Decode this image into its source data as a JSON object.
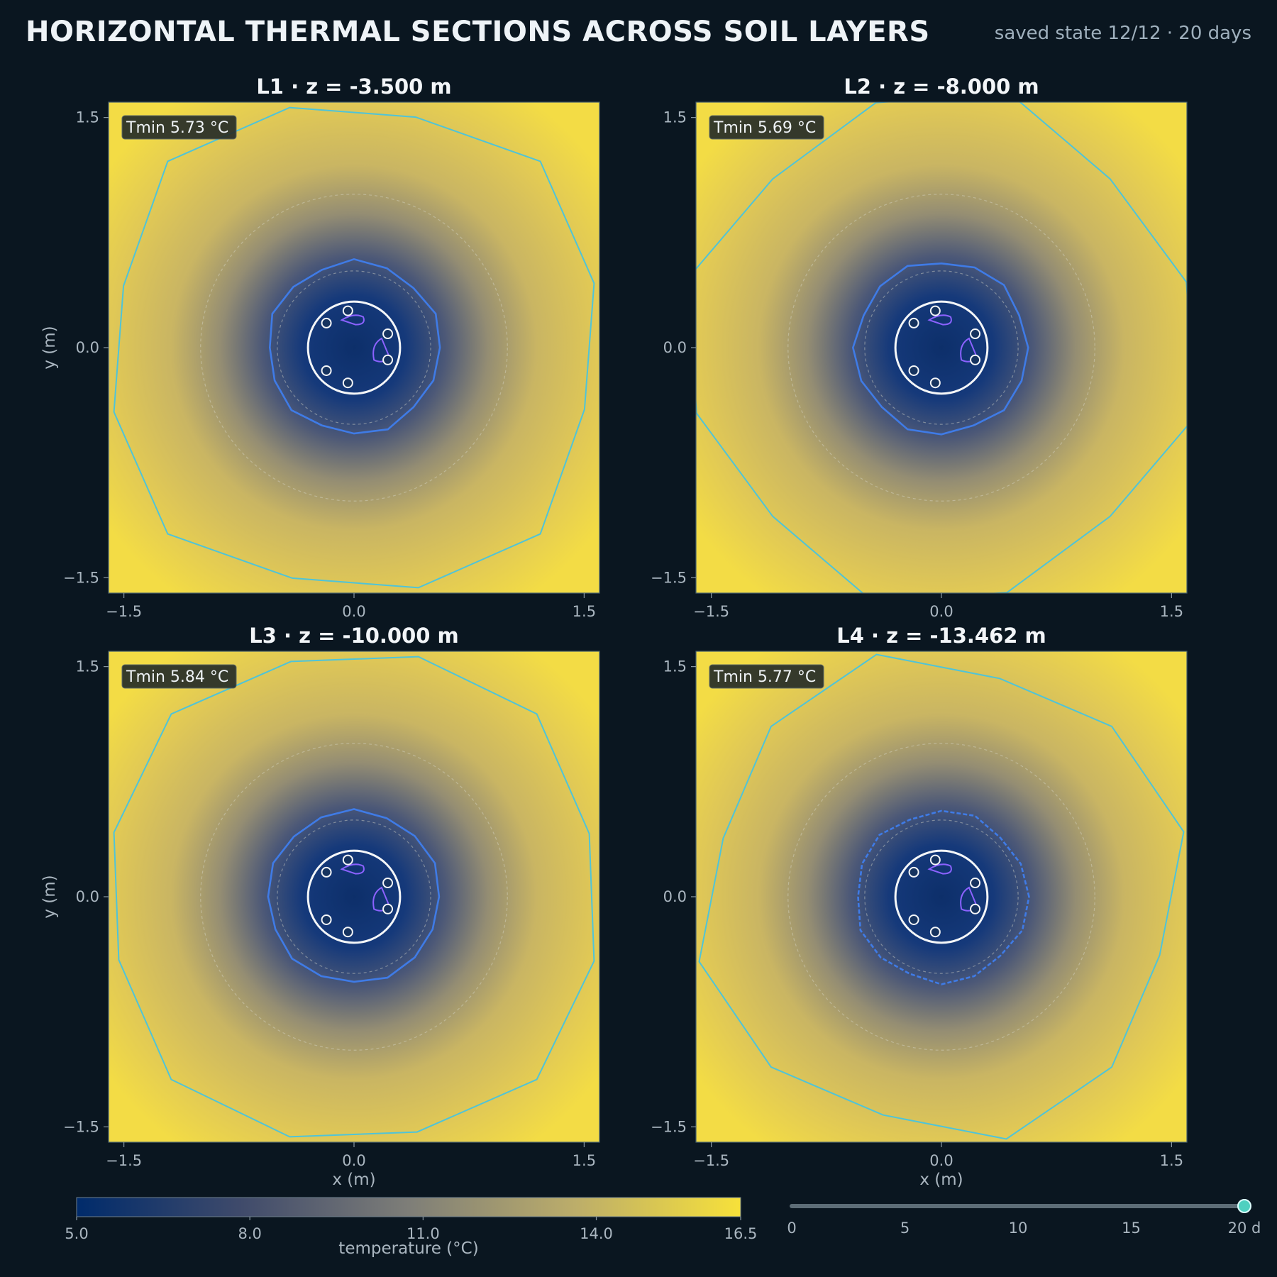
{
  "header": {
    "title": "HORIZONTAL THERMAL SECTIONS ACROSS SOIL LAYERS",
    "status": "saved state 12/12 · 20 days"
  },
  "chart_data": {
    "type": "heatmap",
    "colorbar": {
      "label": "temperature (°C)",
      "range": [
        5.0,
        16.5
      ],
      "ticks": [
        5.0,
        8.0,
        11.0,
        14.0,
        16.5
      ],
      "tick_labels": [
        "5.0",
        "8.0",
        "11.0",
        "14.0",
        "16.5"
      ],
      "colors": [
        "#002b6b",
        "#7f7f7f",
        "#f6e03a"
      ]
    },
    "axes": {
      "xlabel": "x (m)",
      "ylabel": "y (m)",
      "xlim": [
        -1.6,
        1.6
      ],
      "ylim": [
        -1.6,
        1.6
      ],
      "ticks": [
        -1.5,
        0.0,
        1.5
      ],
      "tick_labels": [
        "−1.5",
        "0.0",
        "1.5"
      ]
    },
    "panels": [
      {
        "title": "L1 · z = -3.500 m",
        "tmin_label": "Tmin 5.73 °C",
        "tmin": 5.73
      },
      {
        "title": "L2 · z = -8.000 m",
        "tmin_label": "Tmin 5.69 °C",
        "tmin": 5.69
      },
      {
        "title": "L3 · z = -10.000 m",
        "tmin_label": "Tmin 5.84 °C",
        "tmin": 5.84
      },
      {
        "title": "L4 · z = -13.462 m",
        "tmin_label": "Tmin 5.77 °C",
        "tmin": 5.77
      }
    ],
    "borehole_radius_m": 0.3,
    "pipes": [
      {
        "x": -0.04,
        "y": 0.24
      },
      {
        "x": -0.18,
        "y": 0.16
      },
      {
        "x": 0.22,
        "y": 0.09
      },
      {
        "x": 0.22,
        "y": -0.08
      },
      {
        "x": -0.18,
        "y": -0.15
      },
      {
        "x": -0.04,
        "y": -0.23
      }
    ],
    "rings_dashed_m": [
      0.5,
      1.0
    ],
    "contour_inner_m": 0.56,
    "contour_outer_m": 1.62
  },
  "time_slider": {
    "min": 0,
    "max": 20,
    "value": 20,
    "ticks": [
      "0",
      "5",
      "10",
      "15",
      "20 d"
    ]
  }
}
